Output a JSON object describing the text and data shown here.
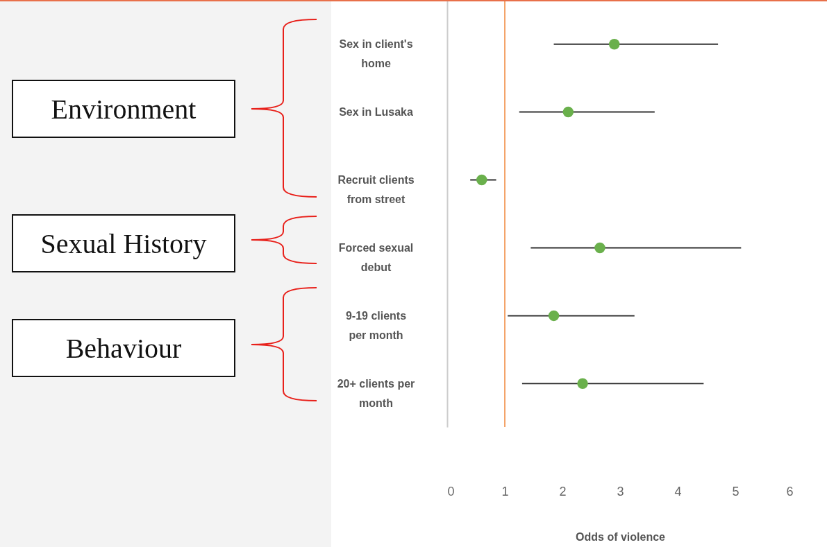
{
  "chart_data": {
    "type": "scatter",
    "xlabel": "Odds of violence",
    "categories": [
      "Sex in client's home",
      "Sex in Lusaka",
      "Recruit clients from street",
      "Forced sexual debut",
      "9-19 clients per month",
      "20+ clients per month"
    ],
    "orientation": "horizontal",
    "series": [
      {
        "color": "#6ab04c",
        "values": [
          2.9,
          2.1,
          0.6,
          2.65,
          1.85,
          2.35
        ],
        "errors": [
          [
            1.85,
            4.7
          ],
          [
            1.25,
            3.6
          ],
          [
            0.4,
            0.85
          ],
          [
            1.45,
            5.1
          ],
          [
            1.05,
            3.25
          ],
          [
            1.3,
            4.45
          ]
        ]
      }
    ],
    "xlim": [
      0,
      6
    ],
    "xticks": [
      0,
      1,
      2,
      3,
      4,
      5,
      6
    ],
    "marker": "circle",
    "ref_lines": [
      {
        "axis": "x",
        "value": 1,
        "color": "#f4a46a"
      }
    ],
    "annotations": [
      "Environment",
      "Sexual History",
      "Behaviour"
    ]
  }
}
